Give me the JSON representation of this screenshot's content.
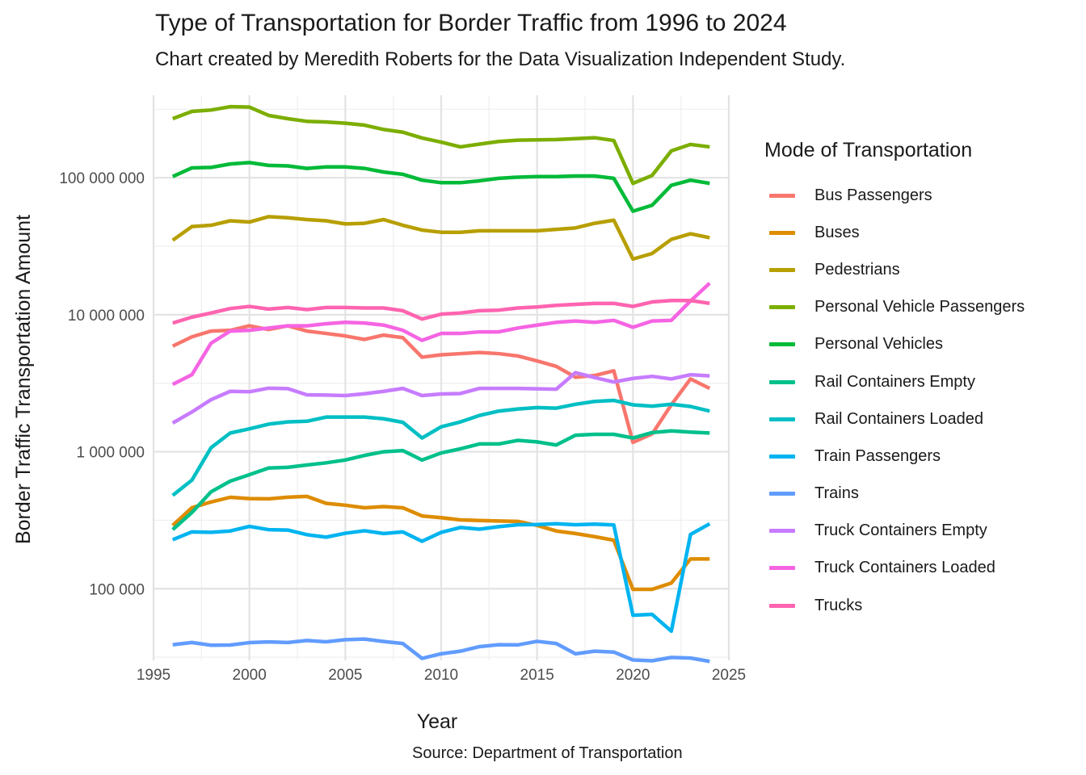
{
  "title": "Type of Transportation for Border Traffic from 1996 to 2024",
  "subtitle": "Chart created by Meredith Roberts for the Data Visualization Independent Study.",
  "caption": "Source: Department of Transportation",
  "chart_data": {
    "type": "line",
    "xlabel": "Year",
    "ylabel": "Border Traffic Transportation Amount",
    "y_scale": "log10",
    "xlim": [
      1995,
      2025
    ],
    "ylim": [
      30000,
      400000000
    ],
    "x_ticks": [
      1995,
      2000,
      2005,
      2010,
      2015,
      2020,
      2025
    ],
    "x_tick_labels": [
      "1995",
      "2000",
      "2005",
      "2010",
      "2015",
      "2020",
      "2025"
    ],
    "y_ticks": [
      100000,
      1000000,
      10000000,
      100000000
    ],
    "y_tick_labels": [
      "100 000",
      "1 000 000",
      "10 000 000",
      "100 000 000"
    ],
    "grid": true,
    "legend_title": "Mode of Transportation",
    "legend_position": "right",
    "x": [
      1996,
      1997,
      1998,
      1999,
      2000,
      2001,
      2002,
      2003,
      2004,
      2005,
      2006,
      2007,
      2008,
      2009,
      2010,
      2011,
      2012,
      2013,
      2014,
      2015,
      2016,
      2017,
      2018,
      2019,
      2020,
      2021,
      2022,
      2023,
      2024
    ],
    "series": [
      {
        "name": "Bus Passengers",
        "color": "#F8766D",
        "values": [
          5900000,
          6900000,
          7600000,
          7700000,
          8300000,
          7800000,
          8300000,
          7600000,
          7300000,
          7000000,
          6600000,
          7100000,
          6800000,
          4900000,
          5100000,
          5200000,
          5300000,
          5200000,
          5000000,
          4600000,
          4200000,
          3500000,
          3600000,
          3900000,
          1170000,
          1350000,
          2200000,
          3400000,
          2900000
        ]
      },
      {
        "name": "Buses",
        "color": "#DE8C00",
        "values": [
          290000,
          390000,
          430000,
          465000,
          455000,
          453000,
          466000,
          472000,
          420000,
          407000,
          390000,
          398000,
          390000,
          340000,
          330000,
          318000,
          315000,
          312000,
          310000,
          290000,
          264000,
          253000,
          240000,
          226000,
          99000,
          99000,
          110000,
          165000,
          165000
        ]
      },
      {
        "name": "Pedestrians",
        "color": "#B79F00",
        "values": [
          35000000,
          44000000,
          45000000,
          48500000,
          47500000,
          52000000,
          51000000,
          49500000,
          48500000,
          46000000,
          46500000,
          49500000,
          45000000,
          41500000,
          40000000,
          40000000,
          41000000,
          41000000,
          41000000,
          41000000,
          42000000,
          43000000,
          46500000,
          49000000,
          25500000,
          28000000,
          35500000,
          39000000,
          36500000
        ]
      },
      {
        "name": "Personal Vehicle Passengers",
        "color": "#7CAE00",
        "values": [
          270000000,
          305000000,
          312000000,
          330000000,
          328000000,
          285000000,
          270000000,
          258000000,
          255000000,
          250000000,
          242000000,
          225000000,
          215000000,
          195000000,
          182000000,
          168000000,
          176000000,
          184000000,
          188000000,
          189000000,
          190000000,
          193000000,
          196000000,
          187000000,
          91000000,
          104000000,
          157000000,
          175000000,
          168000000
        ]
      },
      {
        "name": "Personal Vehicles",
        "color": "#00BA38",
        "values": [
          102000000,
          118000000,
          119000000,
          126000000,
          129000000,
          123000000,
          122000000,
          117000000,
          120000000,
          120000000,
          117000000,
          110000000,
          106000000,
          96000000,
          92000000,
          92000000,
          95000000,
          99000000,
          101000000,
          102000000,
          102000000,
          103000000,
          103000000,
          99000000,
          57000000,
          63000000,
          88000000,
          96000000,
          91000000
        ]
      },
      {
        "name": "Rail Containers Empty",
        "color": "#00C08B",
        "values": [
          270000,
          360000,
          510000,
          610000,
          680000,
          760000,
          770000,
          800000,
          830000,
          870000,
          940000,
          1000000,
          1020000,
          870000,
          980000,
          1050000,
          1140000,
          1140000,
          1210000,
          1180000,
          1120000,
          1320000,
          1340000,
          1340000,
          1260000,
          1380000,
          1420000,
          1390000,
          1370000
        ]
      },
      {
        "name": "Rail Containers Loaded",
        "color": "#00BFC4",
        "values": [
          480000,
          620000,
          1070000,
          1370000,
          1470000,
          1590000,
          1650000,
          1670000,
          1790000,
          1790000,
          1790000,
          1740000,
          1640000,
          1260000,
          1520000,
          1650000,
          1840000,
          1980000,
          2050000,
          2100000,
          2080000,
          2220000,
          2330000,
          2370000,
          2200000,
          2150000,
          2220000,
          2140000,
          1980000
        ]
      },
      {
        "name": "Train Passengers",
        "color": "#00B4F0",
        "values": [
          228000,
          260000,
          258000,
          264000,
          285000,
          270000,
          268000,
          248000,
          238000,
          254000,
          265000,
          253000,
          260000,
          222000,
          258000,
          280000,
          272000,
          284000,
          293000,
          294000,
          298000,
          293000,
          296000,
          292000,
          64000,
          65000,
          49000,
          249000,
          298000
        ]
      },
      {
        "name": "Trains",
        "color": "#619CFF",
        "values": [
          39000,
          40500,
          38700,
          38800,
          40400,
          40900,
          40500,
          41900,
          41000,
          42500,
          42900,
          41200,
          39800,
          31000,
          33500,
          35000,
          37800,
          39000,
          38900,
          41300,
          39800,
          33500,
          35000,
          34500,
          30200,
          29800,
          31500,
          31200,
          29500
        ]
      },
      {
        "name": "Truck Containers Empty",
        "color": "#C77CFF",
        "values": [
          1620000,
          1950000,
          2400000,
          2760000,
          2740000,
          2910000,
          2890000,
          2600000,
          2590000,
          2570000,
          2650000,
          2760000,
          2900000,
          2570000,
          2640000,
          2660000,
          2900000,
          2900000,
          2900000,
          2880000,
          2860000,
          3780000,
          3480000,
          3230000,
          3430000,
          3550000,
          3400000,
          3650000,
          3580000
        ]
      },
      {
        "name": "Truck Containers Loaded",
        "color": "#F564E3",
        "values": [
          3100000,
          3650000,
          6200000,
          7600000,
          7700000,
          8000000,
          8300000,
          8300000,
          8600000,
          8800000,
          8700000,
          8400000,
          7700000,
          6500000,
          7300000,
          7300000,
          7500000,
          7500000,
          8000000,
          8400000,
          8800000,
          9000000,
          8800000,
          9100000,
          8100000,
          9000000,
          9100000,
          12600000,
          17000000
        ]
      },
      {
        "name": "Trucks",
        "color": "#FF64B0",
        "values": [
          8700000,
          9600000,
          10300000,
          11100000,
          11500000,
          11000000,
          11300000,
          10900000,
          11300000,
          11300000,
          11200000,
          11200000,
          10700000,
          9300000,
          10100000,
          10300000,
          10700000,
          10800000,
          11200000,
          11400000,
          11700000,
          11900000,
          12100000,
          12100000,
          11500000,
          12400000,
          12700000,
          12700000,
          12100000
        ]
      }
    ]
  }
}
